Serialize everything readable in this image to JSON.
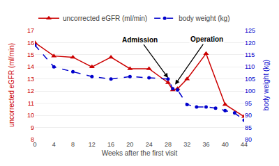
{
  "chart_data": {
    "type": "line",
    "xlabel": "Weeks after the first visit",
    "ylabel": "uncorrected eGFR (ml/min)",
    "y2label": "body weight (kg)",
    "xlim": [
      0,
      44
    ],
    "xticks": [
      0,
      4,
      8,
      12,
      16,
      20,
      24,
      28,
      32,
      36,
      40,
      44
    ],
    "ylim": [
      8,
      17
    ],
    "yticks": [
      8,
      9,
      10,
      11,
      12,
      13,
      14,
      15,
      16,
      17
    ],
    "y2lim": [
      80,
      125
    ],
    "y2ticks": [
      80,
      85,
      90,
      95,
      100,
      105,
      110,
      115,
      120,
      125
    ],
    "grid": true,
    "legend": "upper left",
    "series": [
      {
        "name": "uncorrected eGFR (ml/min)",
        "color": "#cc0000",
        "marker": "triangle-up",
        "line_style": "solid",
        "x": [
          0,
          4,
          8,
          12,
          16,
          20,
          24,
          28,
          29,
          30,
          32,
          36,
          40,
          44
        ],
        "values": [
          16.0,
          14.9,
          14.8,
          14.0,
          14.8,
          13.85,
          13.85,
          12.7,
          12.1,
          12.2,
          13.0,
          15.1,
          10.9,
          9.9
        ]
      },
      {
        "name": "body weight (kg)",
        "color": "#0000cc",
        "marker": "circle",
        "line_style": "dash",
        "axis": "y2",
        "x": [
          0,
          4,
          8,
          12,
          16,
          20,
          24,
          28,
          29,
          30,
          32,
          34,
          36,
          38,
          40,
          42,
          44
        ],
        "values": [
          119,
          110,
          108,
          106,
          105,
          106,
          105.5,
          105,
          101,
          100.5,
          94.5,
          93.5,
          93.5,
          93,
          92,
          91,
          88
        ]
      }
    ],
    "annotations": [
      {
        "text": "Admission",
        "x": 28,
        "y": 13.1
      },
      {
        "text": "Operation",
        "x": 29.5,
        "y": 12.55
      }
    ]
  }
}
